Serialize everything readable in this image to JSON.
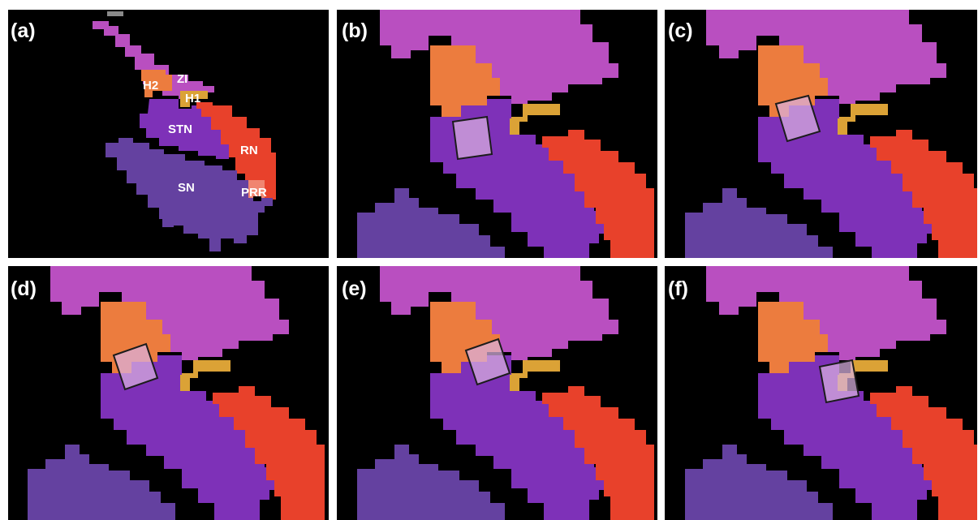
{
  "figure": {
    "panels": [
      {
        "id": "a",
        "label": "(a)"
      },
      {
        "id": "b",
        "label": "(b)"
      },
      {
        "id": "c",
        "label": "(c)"
      },
      {
        "id": "d",
        "label": "(d)"
      },
      {
        "id": "e",
        "label": "(e)"
      },
      {
        "id": "f",
        "label": "(f)"
      }
    ],
    "regions": {
      "zi": "ZI",
      "h2": "H2",
      "h1": "H1",
      "stn": "STN",
      "rn": "RN",
      "sn": "SN",
      "prr": "PRR"
    }
  },
  "colors": {
    "background": "#000000",
    "zi": "#b94fc0",
    "h2": "#ec7c3e",
    "h1": "#dba236",
    "stn": "#7e31b8",
    "rn": "#e8412b",
    "sn": "#6441a0",
    "prr": "#f08570",
    "roi_fill": "#d9b2e0",
    "roi_border": "#1c1c1c"
  }
}
